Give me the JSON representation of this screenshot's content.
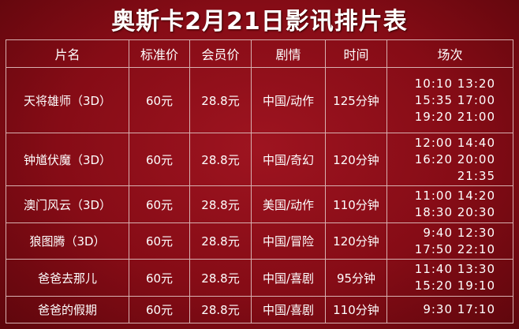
{
  "title": "奥斯卡2月21日影讯排片表",
  "headers": [
    "片名",
    "标准价",
    "会员价",
    "剧情",
    "时间",
    "场次"
  ],
  "rows": [
    {
      "name": "天将雄师（3D）",
      "std_price": "60元",
      "member_price": "28.8元",
      "genre": "中国/动作",
      "duration": "125分钟",
      "times": [
        "10:10 13:20",
        "15:35 17:00",
        "19:20 21:00"
      ]
    },
    {
      "name": "钟馗伏魔（3D）",
      "std_price": "60元",
      "member_price": "28.8元",
      "genre": "中国/奇幻",
      "duration": "120分钟",
      "times": [
        "12:00 14:40",
        "16:20 20:00",
        "21:35"
      ]
    },
    {
      "name": "澳门风云（3D）",
      "std_price": "60元",
      "member_price": "28.8元",
      "genre": "美国/动作",
      "duration": "110分钟",
      "times": [
        "11:00 14:20",
        "18:30 20:30"
      ]
    },
    {
      "name": "狼图腾（3D）",
      "std_price": "60元",
      "member_price": "28.8元",
      "genre": "中国/冒险",
      "duration": "120分钟",
      "times": [
        "9:40 12:30",
        "17:50 22:10"
      ]
    },
    {
      "name": "爸爸去那儿",
      "std_price": "60元",
      "member_price": "28.8元",
      "genre": "中国/喜剧",
      "duration": "95分钟",
      "times": [
        "11:40 13:30",
        "15:20 19:10"
      ]
    },
    {
      "name": "爸爸的假期",
      "std_price": "60元",
      "member_price": "28.8元",
      "genre": "中国/喜剧",
      "duration": "110分钟",
      "times": [
        "9:30 17:10"
      ]
    }
  ]
}
